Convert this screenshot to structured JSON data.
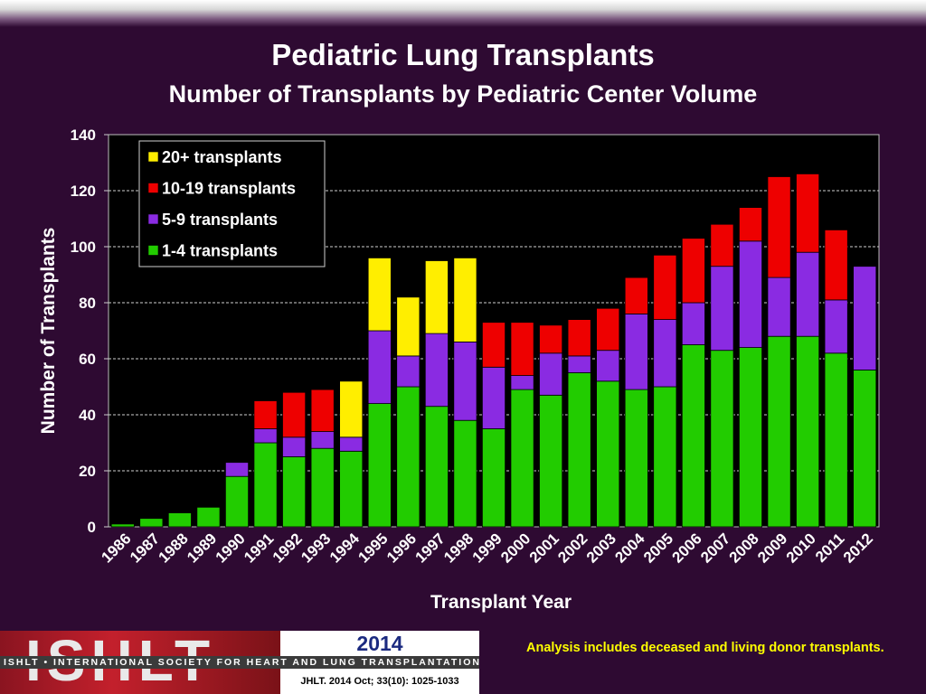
{
  "header": {
    "title": "Pediatric Lung Transplants",
    "subtitle": "Number of Transplants by Pediatric Center Volume"
  },
  "chart_data": {
    "type": "bar",
    "stacked": true,
    "xlabel": "Transplant Year",
    "ylabel": "Number of Transplants",
    "ylim": [
      0,
      140
    ],
    "yticks": [
      0,
      20,
      40,
      60,
      80,
      100,
      120,
      140
    ],
    "grid": true,
    "legend_position": "top-left",
    "categories": [
      "1986",
      "1987",
      "1988",
      "1989",
      "1990",
      "1991",
      "1992",
      "1993",
      "1994",
      "1995",
      "1996",
      "1997",
      "1998",
      "1999",
      "2000",
      "2001",
      "2002",
      "2003",
      "2004",
      "2005",
      "2006",
      "2007",
      "2008",
      "2009",
      "2010",
      "2011",
      "2012"
    ],
    "series": [
      {
        "name": "1-4 transplants",
        "color": "#22cc00",
        "values": [
          1,
          3,
          5,
          7,
          18,
          30,
          25,
          28,
          27,
          44,
          50,
          43,
          38,
          35,
          49,
          47,
          55,
          52,
          49,
          50,
          65,
          63,
          64,
          68,
          68,
          62,
          56
        ]
      },
      {
        "name": "5-9 transplants",
        "color": "#8a2be2",
        "values": [
          0,
          0,
          0,
          0,
          5,
          5,
          7,
          6,
          5,
          26,
          11,
          26,
          28,
          22,
          5,
          15,
          6,
          11,
          27,
          24,
          15,
          30,
          38,
          21,
          30,
          19,
          37
        ]
      },
      {
        "name": "10-19 transplants",
        "color": "#ee0000",
        "values": [
          0,
          0,
          0,
          0,
          0,
          10,
          16,
          15,
          0,
          0,
          0,
          0,
          0,
          16,
          19,
          10,
          13,
          15,
          13,
          23,
          23,
          15,
          12,
          36,
          28,
          25,
          0
        ]
      },
      {
        "name": "20+ transplants",
        "color": "#ffee00",
        "values": [
          0,
          0,
          0,
          0,
          0,
          0,
          0,
          0,
          20,
          26,
          21,
          26,
          30,
          0,
          0,
          0,
          0,
          0,
          0,
          0,
          0,
          0,
          0,
          0,
          0,
          0,
          0
        ]
      }
    ],
    "legend_order": [
      "20+ transplants",
      "10-19 transplants",
      "5-9 transplants",
      "1-4 transplants"
    ]
  },
  "footer": {
    "logo_text": "ISHLT",
    "society_name": "ISHLT • INTERNATIONAL SOCIETY FOR HEART AND LUNG TRANSPLANTATION",
    "year": "2014",
    "citation": "JHLT. 2014 Oct; 33(10): 1025-1033",
    "note": "Analysis includes deceased and living donor transplants."
  }
}
